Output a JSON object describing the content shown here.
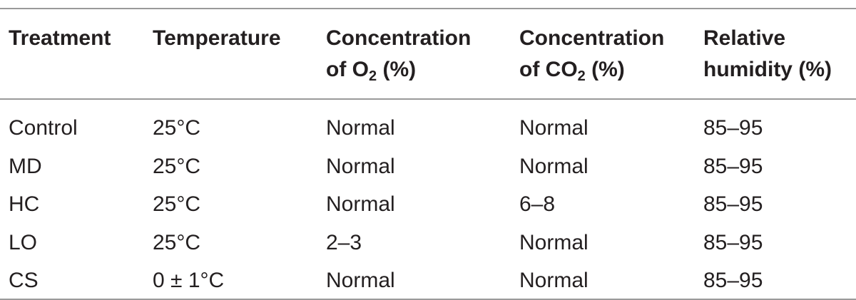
{
  "table": {
    "headers": {
      "treatment": "Treatment",
      "temperature": "Temperature",
      "o2": {
        "line1": "Concentration",
        "line2_prefix": "of O",
        "line2_sub": "2",
        "line2_suffix": " (%)"
      },
      "co2": {
        "line1": "Concentration",
        "line2_prefix": "of CO",
        "line2_sub": "2",
        "line2_suffix": " (%)"
      },
      "humidity": {
        "line1": "Relative",
        "line2": "humidity (%)"
      }
    },
    "rows": [
      {
        "treatment": "Control",
        "temperature": "25°C",
        "o2": "Normal",
        "co2": "Normal",
        "humidity": "85–95"
      },
      {
        "treatment": "MD",
        "temperature": "25°C",
        "o2": "Normal",
        "co2": "Normal",
        "humidity": "85–95"
      },
      {
        "treatment": "HC",
        "temperature": "25°C",
        "o2": "Normal",
        "co2": "6–8",
        "humidity": "85–95"
      },
      {
        "treatment": "LO",
        "temperature": "25°C",
        "o2": "2–3",
        "co2": "Normal",
        "humidity": "85–95"
      },
      {
        "treatment": "CS",
        "temperature": "0 ± 1°C",
        "o2": "Normal",
        "co2": "Normal",
        "humidity": "85–95"
      }
    ]
  }
}
